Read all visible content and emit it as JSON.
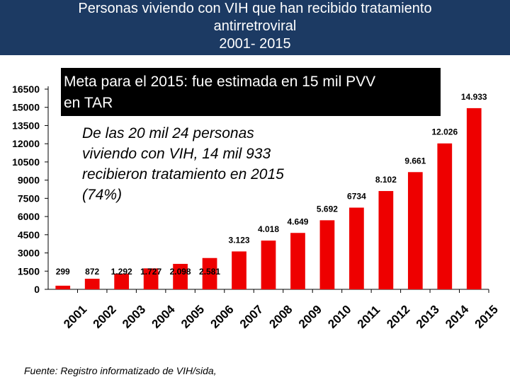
{
  "header": {
    "title_lines": [
      "Personas viviendo con VIH que han recibido tratamiento",
      "antirretroviral",
      "2001- 2015"
    ]
  },
  "meta_box": {
    "lines": [
      "Meta para el 2015: fue estimada en 15 mil PVV",
      "en TAR"
    ]
  },
  "note": {
    "lines": [
      "De las 20 mil 24 personas",
      "viviendo con VIH, 14 mil 933",
      "recibieron tratamiento en 2015",
      "(74%)"
    ]
  },
  "footer": {
    "source": "Fuente: Registro informatizado de VIH/sida,"
  },
  "colors": {
    "bar": "#ee0000",
    "header_bg": "#1c3a63",
    "meta_bg": "#000000"
  },
  "chart_data": {
    "type": "bar",
    "categories": [
      "2001",
      "2002",
      "2003",
      "2004",
      "2005",
      "2006",
      "2007",
      "2008",
      "2009",
      "2010",
      "2011",
      "2012",
      "2013",
      "2014",
      "2015"
    ],
    "values": [
      299,
      872,
      1292,
      1727,
      2098,
      2581,
      3123,
      4018,
      4649,
      5692,
      6734,
      8102,
      9661,
      12026,
      14933
    ],
    "data_labels": [
      "299",
      "872",
      "1.292",
      "1.727",
      "2.098",
      "2.581",
      "3.123",
      "4.018",
      "4.649",
      "5.692",
      "6734",
      "8.102",
      "9.661",
      "12.026",
      "14.933"
    ],
    "yticks": [
      0,
      1500,
      3000,
      4500,
      6000,
      7500,
      9000,
      10500,
      12000,
      13500,
      15000,
      16500
    ],
    "ylim": [
      0,
      16500
    ],
    "grid": false,
    "legend": "none"
  }
}
